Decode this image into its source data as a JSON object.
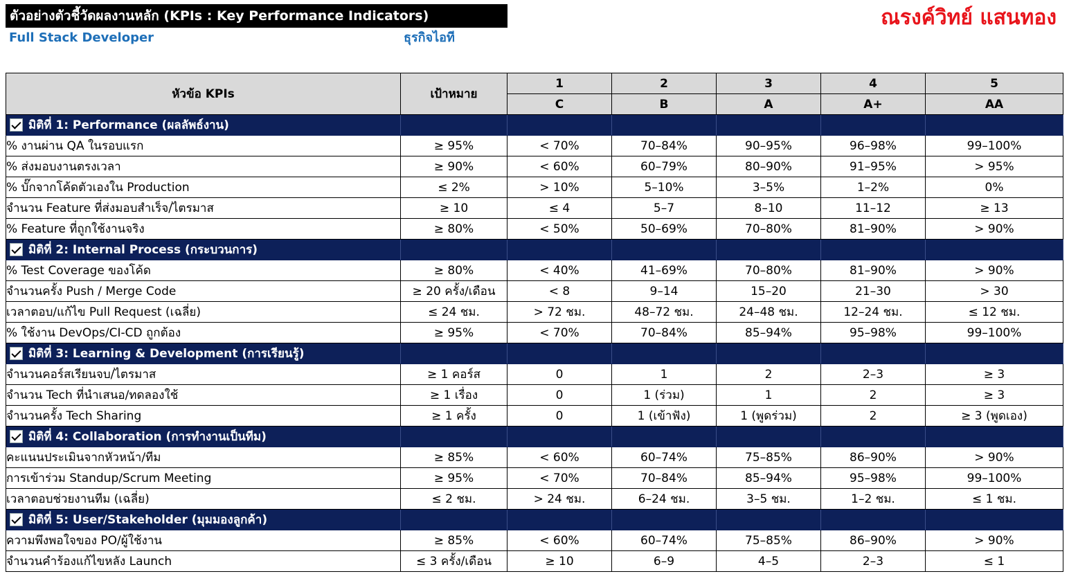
{
  "header": {
    "title": "ตัวอย่างตัวชี้วัดผลงานหลัก (KPIs : Key Performance Indicators)",
    "author": "ณรงค์วิทย์ แสนทอง",
    "role": "Full Stack Developer",
    "business": "ธุรกิจไอที"
  },
  "table_header": {
    "kpi_col": "หัวข้อ KPIs",
    "target_col": "เป้าหมาย",
    "levels": [
      {
        "num": "1",
        "grade": "C",
        "color": "#ff0000"
      },
      {
        "num": "2",
        "grade": "B",
        "color": "#fce4d6"
      },
      {
        "num": "3",
        "grade": "A",
        "color": "#ffff00"
      },
      {
        "num": "4",
        "grade": "A+",
        "color": "#ededdf"
      },
      {
        "num": "5",
        "grade": "AA",
        "color": "#00b050"
      }
    ]
  },
  "sections": [
    {
      "title": "มิติที่ 1: Performance (ผลลัพธ์งาน)",
      "rows": [
        {
          "kpi": "% งานผ่าน QA ในรอบแรก",
          "target": "≥ 95%",
          "levels": [
            "< 70%",
            "70–84%",
            "90–95%",
            "96–98%",
            "99–100%"
          ]
        },
        {
          "kpi": "% ส่งมอบงานตรงเวลา",
          "target": "≥ 90%",
          "levels": [
            "< 60%",
            "60–79%",
            "80–90%",
            "91–95%",
            "> 95%"
          ]
        },
        {
          "kpi": "% บั๊กจากโค้ดตัวเองใน Production",
          "target": "≤ 2%",
          "levels": [
            "> 10%",
            "5–10%",
            "3–5%",
            "1–2%",
            "0%"
          ]
        },
        {
          "kpi": "จำนวน Feature ที่ส่งมอบสำเร็จ/ไตรมาส",
          "target": "≥ 10",
          "levels": [
            "≤ 4",
            "5–7",
            "8–10",
            "11–12",
            "≥ 13"
          ]
        },
        {
          "kpi": "% Feature ที่ถูกใช้งานจริง",
          "target": "≥ 80%",
          "levels": [
            "< 50%",
            "50–69%",
            "70–80%",
            "81–90%",
            "> 90%"
          ]
        }
      ]
    },
    {
      "title": "มิติที่ 2: Internal Process (กระบวนการ)",
      "rows": [
        {
          "kpi": "% Test Coverage ของโค้ด",
          "target": "≥ 80%",
          "levels": [
            "< 40%",
            "41–69%",
            "70–80%",
            "81–90%",
            "> 90%"
          ]
        },
        {
          "kpi": "จำนวนครั้ง Push / Merge Code",
          "target": "≥ 20 ครั้ง/เดือน",
          "levels": [
            "< 8",
            "9–14",
            "15–20",
            "21–30",
            "> 30"
          ]
        },
        {
          "kpi": "เวลาตอบ/แก้ไข Pull Request (เฉลี่ย)",
          "target": "≤ 24 ชม.",
          "levels": [
            "> 72 ชม.",
            "48–72 ชม.",
            "24–48 ชม.",
            "12–24 ชม.",
            "≤ 12 ชม."
          ]
        },
        {
          "kpi": "% ใช้งาน DevOps/CI-CD ถูกต้อง",
          "target": "≥ 95%",
          "levels": [
            "< 70%",
            "70–84%",
            "85–94%",
            "95–98%",
            "99–100%"
          ]
        }
      ]
    },
    {
      "title": "มิติที่ 3: Learning & Development (การเรียนรู้)",
      "rows": [
        {
          "kpi": "จำนวนคอร์สเรียนจบ/ไตรมาส",
          "target": "≥ 1 คอร์ส",
          "levels": [
            "0",
            "1",
            "2",
            "2–3",
            "≥ 3"
          ]
        },
        {
          "kpi": "จำนวน Tech ที่นำเสนอ/ทดลองใช้",
          "target": "≥ 1 เรื่อง",
          "levels": [
            "0",
            "1 (ร่วม)",
            "1",
            "2",
            "≥ 3"
          ]
        },
        {
          "kpi": "จำนวนครั้ง Tech Sharing",
          "target": "≥ 1 ครั้ง",
          "levels": [
            "0",
            "1 (เข้าฟัง)",
            "1 (พูดร่วม)",
            "2",
            "≥ 3 (พูดเอง)"
          ]
        }
      ]
    },
    {
      "title": "มิติที่ 4: Collaboration (การทำงานเป็นทีม)",
      "rows": [
        {
          "kpi": "คะแนนประเมินจากหัวหน้า/ทีม",
          "target": "≥ 85%",
          "levels": [
            "< 60%",
            "60–74%",
            "75–85%",
            "86–90%",
            "> 90%"
          ]
        },
        {
          "kpi": "การเข้าร่วม Standup/Scrum Meeting",
          "target": "≥ 95%",
          "levels": [
            "< 70%",
            "70–84%",
            "85–94%",
            "95–98%",
            "99–100%"
          ]
        },
        {
          "kpi": "เวลาตอบช่วยงานทีม (เฉลี่ย)",
          "target": "≤ 2 ชม.",
          "levels": [
            "> 24 ชม.",
            "6–24 ชม.",
            "3–5 ชม.",
            "1–2 ชม.",
            "≤ 1 ชม."
          ]
        }
      ]
    },
    {
      "title": "มิติที่ 5: User/Stakeholder (มุมมองลูกค้า)",
      "rows": [
        {
          "kpi": "ความพึงพอใจของ PO/ผู้ใช้งาน",
          "target": "≥ 85%",
          "levels": [
            "< 60%",
            "60–74%",
            "75–85%",
            "86–90%",
            "> 90%"
          ]
        },
        {
          "kpi": "จำนวนคำร้องแก้ไขหลัง Launch",
          "target": "≤ 3 ครั้ง/เดือน",
          "levels": [
            "≥ 10",
            "6–9",
            "4–5",
            "2–3",
            "≤ 1"
          ]
        }
      ]
    }
  ]
}
